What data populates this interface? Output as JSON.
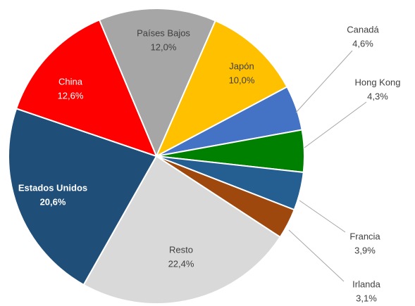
{
  "chart_data": {
    "type": "pie",
    "categories": [
      "Países Bajos",
      "Japón",
      "Canadá",
      "Hong Kong",
      "Francia",
      "Irlanda",
      "Resto",
      "Estados Unidos",
      "China"
    ],
    "values": [
      12.0,
      10.0,
      4.6,
      4.3,
      3.9,
      3.1,
      22.4,
      20.6,
      12.6
    ],
    "value_labels": [
      "12,0%",
      "10,0%",
      "4,6%",
      "4,3%",
      "3,9%",
      "3,1%",
      "22,4%",
      "20,6%",
      "12,6%"
    ],
    "colors": [
      "#a6a6a6",
      "#ffc000",
      "#4472c4",
      "#008000",
      "#255e91",
      "#9e480e",
      "#d9d9d9",
      "#1f4e79",
      "#ff0000"
    ]
  }
}
